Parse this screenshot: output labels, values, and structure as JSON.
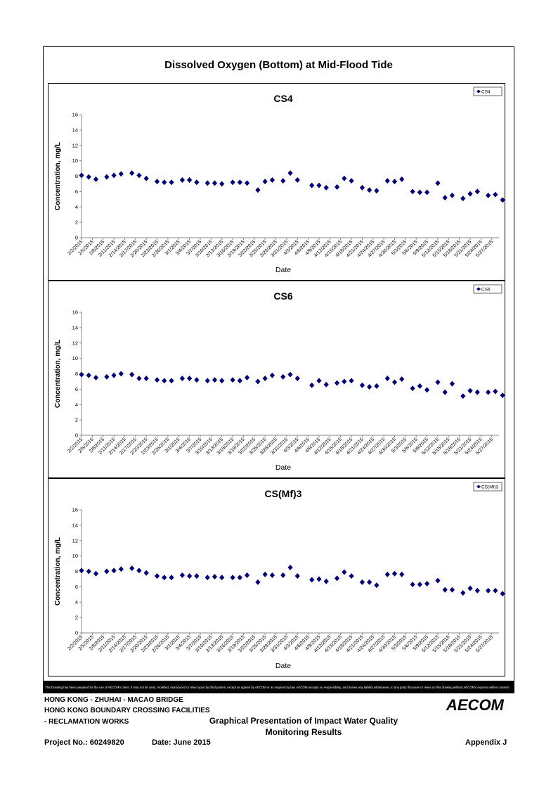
{
  "page_title": "Dissolved Oxygen (Bottom) at Mid-Flood Tide",
  "disclaimer": "This Drawing has been prepared for the use of AECOM's client. It may not be used, modified, reproduced or relied upon by third parties, except as agreed by AECOM or as required by law. AECOM accepts no responsibility, and denies any liability whatsoever, to any party that uses or relies on this drawing without AECOM's express written consent.",
  "project": {
    "line1": "HONG KONG - ZHUHAI - MACAO BRIDGE",
    "line2": "HONG KONG BOUNDARY CROSSING FACILITIES",
    "line3": "- RECLAMATION WORKS",
    "presentation_title_1": "Graphical Presentation of Impact Water Quality",
    "presentation_title_2": "Monitoring Results",
    "project_no": "Project No.: 60249820",
    "date": "Date: June 2015",
    "appendix": "Appendix J",
    "logo": "AECOM"
  },
  "colors": {
    "marker": "#000080",
    "axis": "#888888",
    "frame": "#000000"
  },
  "chart_data": [
    {
      "type": "scatter",
      "title": "CS4",
      "xlabel": "Date",
      "ylabel": "Concentration, mg/L",
      "ylim": [
        0,
        16
      ],
      "yticks": [
        0,
        2,
        4,
        6,
        8,
        10,
        12,
        14,
        16
      ],
      "x_tick_labels": [
        "2/2/2015",
        "2/5/2015",
        "2/8/2015",
        "2/11/2015",
        "2/14/2015",
        "2/17/2015",
        "2/20/2015",
        "2/23/2015",
        "2/26/2015",
        "3/1/2015",
        "3/4/2015",
        "3/7/2015",
        "3/10/2015",
        "3/13/2015",
        "3/16/2015",
        "3/19/2015",
        "3/22/2015",
        "3/25/2015",
        "3/28/2015",
        "3/31/2015",
        "4/3/2015",
        "4/6/2015",
        "4/9/2015",
        "4/12/2015",
        "4/15/2015",
        "4/18/2015",
        "4/21/2015",
        "4/24/2015",
        "4/27/2015",
        "4/30/2015",
        "5/3/2015",
        "5/6/2015",
        "5/9/2015",
        "5/12/2015",
        "5/15/2015",
        "5/18/2015",
        "5/21/2015",
        "5/24/2015",
        "5/27/2015"
      ],
      "x_start": "2/2/2015",
      "x_end": "5/29/2015",
      "legend": "top-right",
      "grid": false,
      "series": [
        {
          "name": "CS4",
          "points": [
            [
              "2/2/2015",
              8.1
            ],
            [
              "2/4/2015",
              7.9
            ],
            [
              "2/6/2015",
              7.6
            ],
            [
              "2/9/2015",
              7.9
            ],
            [
              "2/11/2015",
              8.1
            ],
            [
              "2/13/2015",
              8.3
            ],
            [
              "2/16/2015",
              8.4
            ],
            [
              "2/18/2015",
              8.1
            ],
            [
              "2/20/2015",
              7.7
            ],
            [
              "2/23/2015",
              7.3
            ],
            [
              "2/25/2015",
              7.2
            ],
            [
              "2/27/2015",
              7.2
            ],
            [
              "3/2/2015",
              7.5
            ],
            [
              "3/4/2015",
              7.5
            ],
            [
              "3/6/2015",
              7.2
            ],
            [
              "3/9/2015",
              7.1
            ],
            [
              "3/11/2015",
              7.1
            ],
            [
              "3/13/2015",
              7.0
            ],
            [
              "3/16/2015",
              7.2
            ],
            [
              "3/18/2015",
              7.2
            ],
            [
              "3/20/2015",
              7.1
            ],
            [
              "3/23/2015",
              6.2
            ],
            [
              "3/25/2015",
              7.3
            ],
            [
              "3/27/2015",
              7.5
            ],
            [
              "3/30/2015",
              7.4
            ],
            [
              "4/1/2015",
              8.4
            ],
            [
              "4/3/2015",
              7.5
            ],
            [
              "4/7/2015",
              6.8
            ],
            [
              "4/9/2015",
              6.8
            ],
            [
              "4/11/2015",
              6.5
            ],
            [
              "4/14/2015",
              6.6
            ],
            [
              "4/16/2015",
              7.7
            ],
            [
              "4/18/2015",
              7.4
            ],
            [
              "4/21/2015",
              6.5
            ],
            [
              "4/23/2015",
              6.2
            ],
            [
              "4/25/2015",
              6.1
            ],
            [
              "4/28/2015",
              7.4
            ],
            [
              "4/30/2015",
              7.3
            ],
            [
              "5/2/2015",
              7.6
            ],
            [
              "5/5/2015",
              6.0
            ],
            [
              "5/7/2015",
              5.9
            ],
            [
              "5/9/2015",
              5.9
            ],
            [
              "5/12/2015",
              7.1
            ],
            [
              "5/14/2015",
              5.2
            ],
            [
              "5/16/2015",
              5.5
            ],
            [
              "5/19/2015",
              5.1
            ],
            [
              "5/21/2015",
              5.7
            ],
            [
              "5/23/2015",
              6.0
            ],
            [
              "5/26/2015",
              5.5
            ],
            [
              "5/28/2015",
              5.6
            ],
            [
              "5/30/2015",
              4.9
            ]
          ]
        }
      ]
    },
    {
      "type": "scatter",
      "title": "CS6",
      "xlabel": "Date",
      "ylabel": "Concentration, mg/L",
      "ylim": [
        0,
        16
      ],
      "yticks": [
        0,
        2,
        4,
        6,
        8,
        10,
        12,
        14,
        16
      ],
      "x_tick_labels": [
        "2/2/2015",
        "2/5/2015",
        "2/8/2015",
        "2/11/2015",
        "2/14/2015",
        "2/17/2015",
        "2/20/2015",
        "2/23/2015",
        "2/26/2015",
        "3/1/2015",
        "3/4/2015",
        "3/7/2015",
        "3/10/2015",
        "3/13/2015",
        "3/16/2015",
        "3/19/2015",
        "3/22/2015",
        "3/25/2015",
        "3/28/2015",
        "3/31/2015",
        "4/3/2015",
        "4/6/2015",
        "4/9/2015",
        "4/12/2015",
        "4/15/2015",
        "4/18/2015",
        "4/21/2015",
        "4/24/2015",
        "4/27/2015",
        "4/30/2015",
        "5/3/2015",
        "5/6/2015",
        "5/9/2015",
        "5/12/2015",
        "5/15/2015",
        "5/18/2015",
        "5/21/2015",
        "5/24/2015",
        "5/27/2015"
      ],
      "x_start": "2/2/2015",
      "x_end": "5/29/2015",
      "legend": "top-right",
      "grid": false,
      "series": [
        {
          "name": "CS6",
          "points": [
            [
              "2/2/2015",
              7.9
            ],
            [
              "2/4/2015",
              7.8
            ],
            [
              "2/6/2015",
              7.5
            ],
            [
              "2/9/2015",
              7.6
            ],
            [
              "2/11/2015",
              7.8
            ],
            [
              "2/13/2015",
              8.0
            ],
            [
              "2/16/2015",
              7.9
            ],
            [
              "2/18/2015",
              7.4
            ],
            [
              "2/20/2015",
              7.4
            ],
            [
              "2/23/2015",
              7.2
            ],
            [
              "2/25/2015",
              7.1
            ],
            [
              "2/27/2015",
              7.1
            ],
            [
              "3/2/2015",
              7.4
            ],
            [
              "3/4/2015",
              7.4
            ],
            [
              "3/6/2015",
              7.2
            ],
            [
              "3/9/2015",
              7.1
            ],
            [
              "3/11/2015",
              7.2
            ],
            [
              "3/13/2015",
              7.1
            ],
            [
              "3/16/2015",
              7.2
            ],
            [
              "3/18/2015",
              7.1
            ],
            [
              "3/20/2015",
              7.5
            ],
            [
              "3/23/2015",
              7.0
            ],
            [
              "3/25/2015",
              7.4
            ],
            [
              "3/27/2015",
              7.8
            ],
            [
              "3/30/2015",
              7.6
            ],
            [
              "4/1/2015",
              7.9
            ],
            [
              "4/3/2015",
              7.4
            ],
            [
              "4/7/2015",
              6.5
            ],
            [
              "4/9/2015",
              7.1
            ],
            [
              "4/11/2015",
              6.6
            ],
            [
              "4/14/2015",
              6.8
            ],
            [
              "4/16/2015",
              7.0
            ],
            [
              "4/18/2015",
              7.1
            ],
            [
              "4/21/2015",
              6.5
            ],
            [
              "4/23/2015",
              6.3
            ],
            [
              "4/25/2015",
              6.4
            ],
            [
              "4/28/2015",
              7.4
            ],
            [
              "4/30/2015",
              6.9
            ],
            [
              "5/2/2015",
              7.3
            ],
            [
              "5/5/2015",
              6.1
            ],
            [
              "5/7/2015",
              6.4
            ],
            [
              "5/9/2015",
              5.9
            ],
            [
              "5/12/2015",
              6.9
            ],
            [
              "5/14/2015",
              5.6
            ],
            [
              "5/16/2015",
              6.7
            ],
            [
              "5/19/2015",
              5.1
            ],
            [
              "5/21/2015",
              5.8
            ],
            [
              "5/23/2015",
              5.6
            ],
            [
              "5/26/2015",
              5.6
            ],
            [
              "5/28/2015",
              5.7
            ],
            [
              "5/30/2015",
              5.2
            ]
          ]
        }
      ]
    },
    {
      "type": "scatter",
      "title": "CS(Mf)3",
      "xlabel": "Date",
      "ylabel": "Concentration, mg/L",
      "ylim": [
        0,
        16
      ],
      "yticks": [
        0,
        2,
        4,
        6,
        8,
        10,
        12,
        14,
        16
      ],
      "x_tick_labels": [
        "2/2/2015",
        "2/5/2015",
        "2/8/2015",
        "2/11/2015",
        "2/14/2015",
        "2/17/2015",
        "2/20/2015",
        "2/23/2015",
        "2/26/2015",
        "3/1/2015",
        "3/4/2015",
        "3/7/2015",
        "3/10/2015",
        "3/13/2015",
        "3/16/2015",
        "3/19/2015",
        "3/22/2015",
        "3/25/2015",
        "3/28/2015",
        "3/31/2015",
        "4/3/2015",
        "4/6/2015",
        "4/9/2015",
        "4/12/2015",
        "4/15/2015",
        "4/18/2015",
        "4/21/2015",
        "4/24/2015",
        "4/27/2015",
        "4/30/2015",
        "5/3/2015",
        "5/6/2015",
        "5/9/2015",
        "5/12/2015",
        "5/15/2015",
        "5/18/2015",
        "5/21/2015",
        "5/24/2015",
        "5/27/2015"
      ],
      "x_start": "2/2/2015",
      "x_end": "5/29/2015",
      "legend": "top-right",
      "grid": false,
      "series": [
        {
          "name": "CS(Mf)3",
          "points": [
            [
              "2/2/2015",
              8.1
            ],
            [
              "2/4/2015",
              8.0
            ],
            [
              "2/6/2015",
              7.7
            ],
            [
              "2/9/2015",
              8.0
            ],
            [
              "2/11/2015",
              8.1
            ],
            [
              "2/13/2015",
              8.3
            ],
            [
              "2/16/2015",
              8.4
            ],
            [
              "2/18/2015",
              8.1
            ],
            [
              "2/20/2015",
              7.8
            ],
            [
              "2/23/2015",
              7.4
            ],
            [
              "2/25/2015",
              7.2
            ],
            [
              "2/27/2015",
              7.2
            ],
            [
              "3/2/2015",
              7.5
            ],
            [
              "3/4/2015",
              7.4
            ],
            [
              "3/6/2015",
              7.4
            ],
            [
              "3/9/2015",
              7.2
            ],
            [
              "3/11/2015",
              7.3
            ],
            [
              "3/13/2015",
              7.2
            ],
            [
              "3/16/2015",
              7.2
            ],
            [
              "3/18/2015",
              7.2
            ],
            [
              "3/20/2015",
              7.5
            ],
            [
              "3/23/2015",
              6.6
            ],
            [
              "3/25/2015",
              7.6
            ],
            [
              "3/27/2015",
              7.5
            ],
            [
              "3/30/2015",
              7.5
            ],
            [
              "4/1/2015",
              8.5
            ],
            [
              "4/3/2015",
              7.4
            ],
            [
              "4/7/2015",
              6.9
            ],
            [
              "4/9/2015",
              7.0
            ],
            [
              "4/11/2015",
              6.7
            ],
            [
              "4/14/2015",
              7.1
            ],
            [
              "4/16/2015",
              7.9
            ],
            [
              "4/18/2015",
              7.4
            ],
            [
              "4/21/2015",
              6.6
            ],
            [
              "4/23/2015",
              6.6
            ],
            [
              "4/25/2015",
              6.2
            ],
            [
              "4/28/2015",
              7.6
            ],
            [
              "4/30/2015",
              7.7
            ],
            [
              "5/2/2015",
              7.6
            ],
            [
              "5/5/2015",
              6.3
            ],
            [
              "5/7/2015",
              6.3
            ],
            [
              "5/9/2015",
              6.4
            ],
            [
              "5/12/2015",
              6.8
            ],
            [
              "5/14/2015",
              5.6
            ],
            [
              "5/16/2015",
              5.6
            ],
            [
              "5/19/2015",
              5.2
            ],
            [
              "5/21/2015",
              5.8
            ],
            [
              "5/23/2015",
              5.5
            ],
            [
              "5/26/2015",
              5.5
            ],
            [
              "5/28/2015",
              5.5
            ],
            [
              "5/30/2015",
              5.1
            ]
          ]
        }
      ]
    }
  ]
}
